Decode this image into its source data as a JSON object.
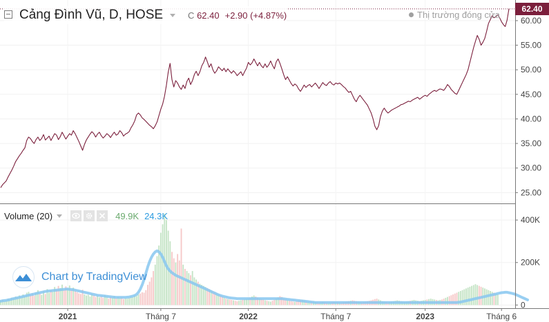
{
  "header": {
    "symbol_title": "Cảng Đình Vũ, D, HOSE",
    "close_label": "C",
    "close_value": "62.40",
    "change": "+2.90 (+4.87%)",
    "market_status": "Thị trường đóng cửa"
  },
  "volume_panel": {
    "title": "Volume (20)",
    "volume_value": "49.9K",
    "ma_value": "24.3K"
  },
  "watermark": "Chart by TradingView",
  "price_tag": "62.40",
  "colors": {
    "price_line": "#7b1f3c",
    "volume_up": "#c5e4c6",
    "volume_down": "#f6c9c9",
    "volume_ma": "#87c7f0",
    "status_gray": "#a0a0a0"
  },
  "icons": [
    "eye-icon",
    "gear-icon",
    "close-icon",
    "tradingview-logo-icon",
    "chevron-down-icon"
  ],
  "chart_data": [
    {
      "type": "line",
      "series_name": "Cảng Đình Vũ, D, HOSE",
      "y_ticks": [
        25,
        30,
        35,
        40,
        45,
        50,
        55,
        60
      ],
      "y_tick_labels": [
        "25.00",
        "30.00",
        "35.00",
        "40.00",
        "45.00",
        "50.00",
        "55.00",
        "60.00"
      ],
      "ylim": [
        22.8,
        64.2
      ],
      "x_tick_labels": [
        "2021",
        "Tháng 7",
        "2022",
        "Tháng 7",
        "2023",
        "Tháng 6"
      ],
      "x_tick_bold": [
        true,
        false,
        true,
        false,
        true,
        false
      ],
      "x_tick_index": [
        36,
        86,
        133,
        180,
        228,
        269
      ],
      "last_value": 62.4,
      "close": [
        26.0,
        26.6,
        27.0,
        27.4,
        28.2,
        28.9,
        29.6,
        30.4,
        31.3,
        31.9,
        32.5,
        33.0,
        33.6,
        34.1,
        35.6,
        36.3,
        36.0,
        35.4,
        35.0,
        35.8,
        36.3,
        35.6,
        36.0,
        36.8,
        35.7,
        36.1,
        36.5,
        35.6,
        36.3,
        37.0,
        36.7,
        35.8,
        36.4,
        37.3,
        36.6,
        35.9,
        36.5,
        37.0,
        36.7,
        37.6,
        37.0,
        36.2,
        35.4,
        34.5,
        33.6,
        34.8,
        35.7,
        36.3,
        36.9,
        37.4,
        37.0,
        36.3,
        36.9,
        37.3,
        36.6,
        36.1,
        36.5,
        37.0,
        36.7,
        36.2,
        36.8,
        37.3,
        36.7,
        36.9,
        37.6,
        37.2,
        36.5,
        36.9,
        37.1,
        37.4,
        38.2,
        38.8,
        39.6,
        40.8,
        41.2,
        40.8,
        40.2,
        39.9,
        39.5,
        39.1,
        38.7,
        38.4,
        38.0,
        38.6,
        39.4,
        40.7,
        42.0,
        43.0,
        44.6,
        46.8,
        49.5,
        51.3,
        48.0,
        46.5,
        47.8,
        47.3,
        46.5,
        46.0,
        46.9,
        46.2,
        47.6,
        48.3,
        47.0,
        47.8,
        49.0,
        49.7,
        48.8,
        49.6,
        50.8,
        51.5,
        52.6,
        51.6,
        50.5,
        51.2,
        50.0,
        49.3,
        49.8,
        50.6,
        50.2,
        49.8,
        50.3,
        49.6,
        50.2,
        49.7,
        49.3,
        49.8,
        49.4,
        48.8,
        49.2,
        49.6,
        48.8,
        49.6,
        50.3,
        51.5,
        51.0,
        51.4,
        52.2,
        51.5,
        50.8,
        51.5,
        50.8,
        50.4,
        51.2,
        50.5,
        51.0,
        51.8,
        50.9,
        50.2,
        51.6,
        52.2,
        51.3,
        50.2,
        49.0,
        48.0,
        48.6,
        47.9,
        47.2,
        46.7,
        47.1,
        46.8,
        46.1,
        45.6,
        46.2,
        46.9,
        46.4,
        46.8,
        47.0,
        46.5,
        46.9,
        47.3,
        46.8,
        46.2,
        46.8,
        47.4,
        47.0,
        46.8,
        47.3,
        47.6,
        47.1,
        46.9,
        47.3,
        47.1,
        47.3,
        47.0,
        46.6,
        46.3,
        45.8,
        45.4,
        45.6,
        44.8,
        44.0,
        43.5,
        44.3,
        44.8,
        44.3,
        43.8,
        43.3,
        42.8,
        42.0,
        41.2,
        40.0,
        38.5,
        37.8,
        38.6,
        40.5,
        41.6,
        42.2,
        41.6,
        41.2,
        41.5,
        41.8,
        42.0,
        42.2,
        42.4,
        42.6,
        42.9,
        43.0,
        43.2,
        43.4,
        43.6,
        43.5,
        43.8,
        44.0,
        44.2,
        44.4,
        44.0,
        44.3,
        44.6,
        44.8,
        44.6,
        45.0,
        45.3,
        45.6,
        45.8,
        45.6,
        45.9,
        46.1,
        46.0,
        45.8,
        46.3,
        47.0,
        46.6,
        46.0,
        45.6,
        45.2,
        45.0,
        45.8,
        46.6,
        47.4,
        48.2,
        49.0,
        50.0,
        51.5,
        53.0,
        54.5,
        55.8,
        57.0,
        56.2,
        55.0,
        55.6,
        56.4,
        57.8,
        59.4,
        60.2,
        61.0,
        60.6,
        60.8,
        61.2,
        60.6,
        59.8,
        59.2,
        58.8,
        60.1,
        62.4
      ]
    },
    {
      "type": "bar",
      "series_name": "Volume",
      "y_ticks": [
        0,
        200000,
        400000
      ],
      "y_tick_labels": [
        "0",
        "200K",
        "400K"
      ],
      "ylim": [
        -15000,
        475000
      ],
      "bar_values": [
        20000,
        25000,
        18000,
        22000,
        30000,
        28000,
        35000,
        32000,
        40000,
        36000,
        45000,
        38000,
        50000,
        42000,
        58000,
        62000,
        48000,
        55000,
        44000,
        60000,
        70000,
        55000,
        48000,
        65000,
        52000,
        75000,
        58000,
        68000,
        62000,
        85000,
        72000,
        90000,
        80000,
        96000,
        70000,
        88000,
        78000,
        92000,
        70000,
        82000,
        66000,
        60000,
        55000,
        52000,
        72000,
        50000,
        45000,
        48000,
        40000,
        52000,
        46000,
        38000,
        44000,
        36000,
        42000,
        34000,
        46000,
        40000,
        30000,
        38000,
        35000,
        42000,
        32000,
        38000,
        34000,
        36000,
        28000,
        32000,
        30000,
        34000,
        40000,
        38000,
        46000,
        42000,
        50000,
        54000,
        60000,
        58000,
        70000,
        95000,
        110000,
        130000,
        160000,
        190000,
        230000,
        280000,
        340000,
        380000,
        430000,
        400000,
        350000,
        300000,
        250000,
        220000,
        200000,
        240000,
        210000,
        360000,
        190000,
        170000,
        160000,
        150000,
        140000,
        160000,
        130000,
        120000,
        110000,
        100000,
        95000,
        90000,
        85000,
        80000,
        75000,
        70000,
        65000,
        60000,
        55000,
        50000,
        45000,
        40000,
        35000,
        30000,
        28000,
        26000,
        24000,
        22000,
        20000,
        18000,
        20000,
        22000,
        24000,
        26000,
        28000,
        30000,
        35000,
        40000,
        45000,
        40000,
        35000,
        30000,
        28000,
        25000,
        22000,
        20000,
        18000,
        16000,
        20000,
        24000,
        30000,
        36000,
        42000,
        38000,
        30000,
        25000,
        22000,
        20000,
        18000,
        16000,
        15000,
        18000,
        20000,
        22000,
        24000,
        20000,
        16000,
        14000,
        12000,
        14000,
        16000,
        14000,
        12000,
        10000,
        12000,
        14000,
        12000,
        10000,
        9000,
        10000,
        12000,
        14000,
        13000,
        12000,
        11000,
        10000,
        12000,
        14000,
        16000,
        18000,
        20000,
        22000,
        20000,
        18000,
        16000,
        14000,
        12000,
        14000,
        16000,
        18000,
        20000,
        22000,
        25000,
        28000,
        30000,
        26000,
        22000,
        18000,
        16000,
        14000,
        12000,
        14000,
        16000,
        18000,
        20000,
        22000,
        20000,
        18000,
        16000,
        14000,
        16000,
        18000,
        20000,
        22000,
        24000,
        22000,
        20000,
        18000,
        20000,
        22000,
        24000,
        26000,
        28000,
        30000,
        28000,
        26000,
        24000,
        22000,
        24000,
        26000,
        30000,
        34000,
        38000,
        42000,
        46000,
        50000,
        54000,
        58000,
        62000,
        66000,
        70000,
        74000,
        78000,
        82000,
        86000,
        90000,
        94000,
        98000,
        94000,
        90000,
        86000,
        82000,
        78000,
        74000,
        70000,
        66000,
        62000,
        58000,
        54000,
        49900
      ],
      "ma_values": [
        18000,
        20000,
        21000,
        22000,
        24000,
        26000,
        28000,
        30000,
        32000,
        34000,
        36000,
        38000,
        40000,
        42000,
        44000,
        46000,
        48000,
        50000,
        52000,
        54000,
        56000,
        58000,
        60000,
        62000,
        64000,
        65000,
        66000,
        67000,
        68000,
        69000,
        70000,
        71000,
        72000,
        73000,
        74000,
        75000,
        75000,
        74000,
        73000,
        72000,
        70000,
        68000,
        66000,
        64000,
        62000,
        60000,
        58000,
        56000,
        54000,
        52000,
        50000,
        48000,
        46000,
        45000,
        44000,
        43000,
        42000,
        41000,
        40000,
        39000,
        38000,
        37000,
        36000,
        36000,
        36000,
        36000,
        36000,
        36000,
        37000,
        38000,
        40000,
        42000,
        45000,
        50000,
        60000,
        75000,
        95000,
        120000,
        150000,
        180000,
        205000,
        225000,
        240000,
        250000,
        255000,
        250000,
        240000,
        225000,
        205000,
        185000,
        170000,
        160000,
        152000,
        146000,
        140000,
        136000,
        132000,
        128000,
        124000,
        120000,
        116000,
        112000,
        108000,
        104000,
        100000,
        96000,
        92000,
        88000,
        84000,
        80000,
        76000,
        72000,
        68000,
        64000,
        60000,
        56000,
        52000,
        48000,
        45000,
        42000,
        40000,
        38000,
        36000,
        34000,
        33000,
        32000,
        31000,
        30000,
        30000,
        30000,
        30000,
        30000,
        30000,
        30000,
        30000,
        30000,
        30000,
        30000,
        30000,
        30000,
        30000,
        30000,
        30000,
        30000,
        30000,
        30000,
        30000,
        30000,
        30000,
        30000,
        30000,
        30000,
        29000,
        28000,
        27000,
        26000,
        25000,
        24000,
        23000,
        22000,
        21000,
        20000,
        19000,
        18000,
        17000,
        16000,
        15000,
        14000,
        13000,
        12000,
        12000,
        12000,
        12000,
        12000,
        12000,
        12000,
        12000,
        12000,
        12000,
        12000,
        12000,
        12000,
        12000,
        12000,
        12000,
        12000,
        12000,
        12000,
        12000,
        12000,
        12000,
        12000,
        12000,
        12000,
        12000,
        12000,
        12000,
        12000,
        12000,
        12000,
        12000,
        12000,
        12000,
        12000,
        12000,
        12000,
        12000,
        12000,
        12000,
        12000,
        12000,
        12000,
        12000,
        12000,
        12000,
        12000,
        12000,
        12000,
        12000,
        12000,
        12000,
        12000,
        12000,
        12000,
        12000,
        12000,
        12000,
        12000,
        12000,
        12000,
        12000,
        12000,
        12000,
        12000,
        12000,
        12000,
        12000,
        12000,
        12000,
        12000,
        12000,
        12000,
        12000,
        12000,
        12000,
        12000,
        13000,
        14000,
        16000,
        18000,
        20000,
        22000,
        24000,
        26000,
        28000,
        30000,
        32000,
        34000,
        36000,
        38000,
        40000,
        42000,
        44000,
        46000,
        48000,
        50000,
        52000,
        54000,
        56000,
        58000,
        59000,
        60000,
        60000,
        58000,
        56000,
        54000,
        52000,
        48000,
        44000,
        40000,
        36000,
        32000,
        28000,
        24300
      ]
    }
  ]
}
